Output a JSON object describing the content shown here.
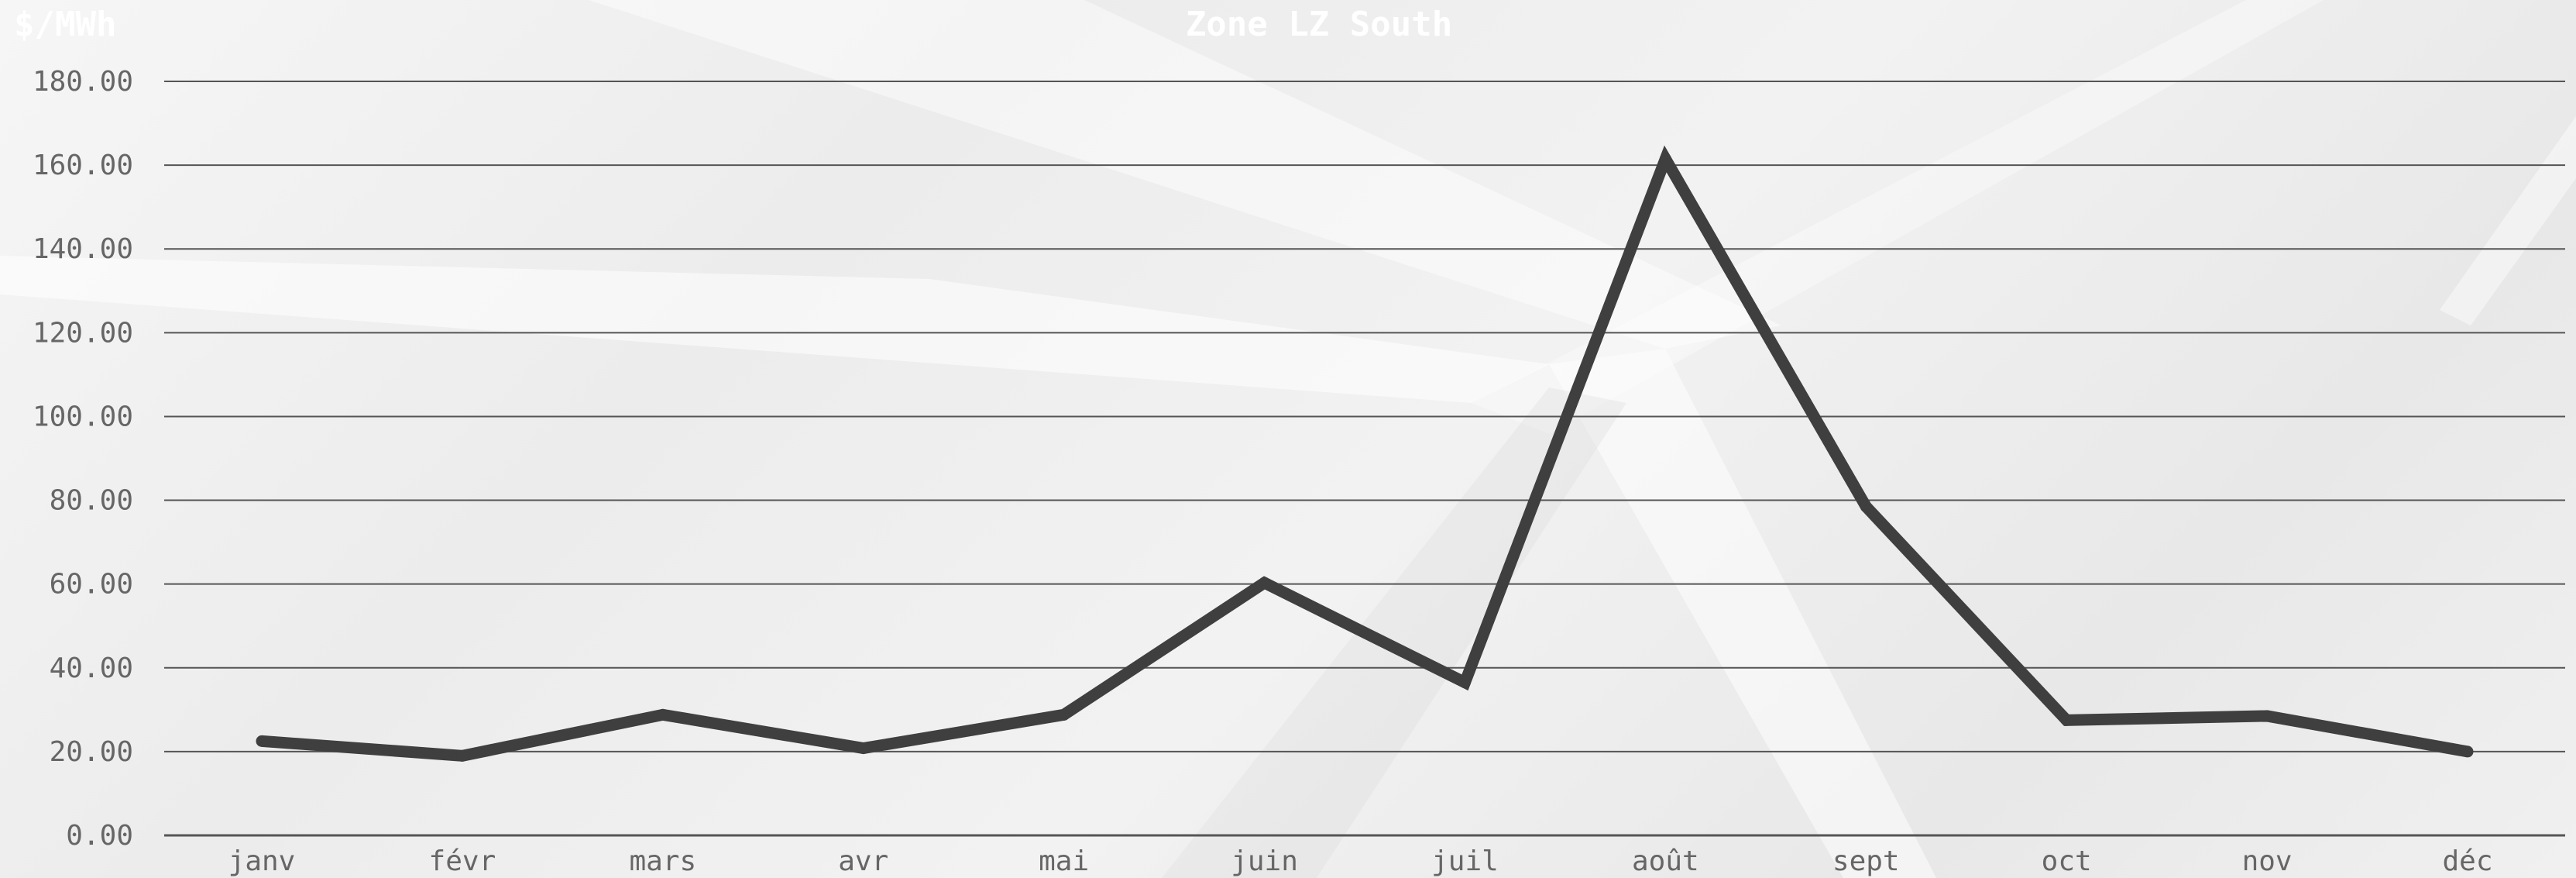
{
  "chart_data": {
    "type": "line",
    "title": "Zone LZ South",
    "ylabel": "$/MWh",
    "xlabel": "",
    "categories": [
      "janv",
      "févr",
      "mars",
      "avr",
      "mai",
      "juin",
      "juil",
      "août",
      "sept",
      "oct",
      "nov",
      "déc"
    ],
    "series": [
      {
        "values": [
          22.5,
          19.0,
          28.8,
          20.8,
          28.8,
          60.3,
          36.5,
          161.5,
          78.5,
          27.5,
          28.5,
          20.0
        ]
      }
    ],
    "ylim": [
      0,
      180
    ],
    "yticks": [
      "0.00",
      "20.00",
      "40.00",
      "60.00",
      "80.00",
      "100.00",
      "120.00",
      "140.00",
      "160.00",
      "180.00"
    ],
    "grid": true,
    "legend": "none",
    "colors": {
      "line": "#3f3f3f",
      "grid": "#555555",
      "ticks": "#666666",
      "title": "#ffffff"
    }
  }
}
